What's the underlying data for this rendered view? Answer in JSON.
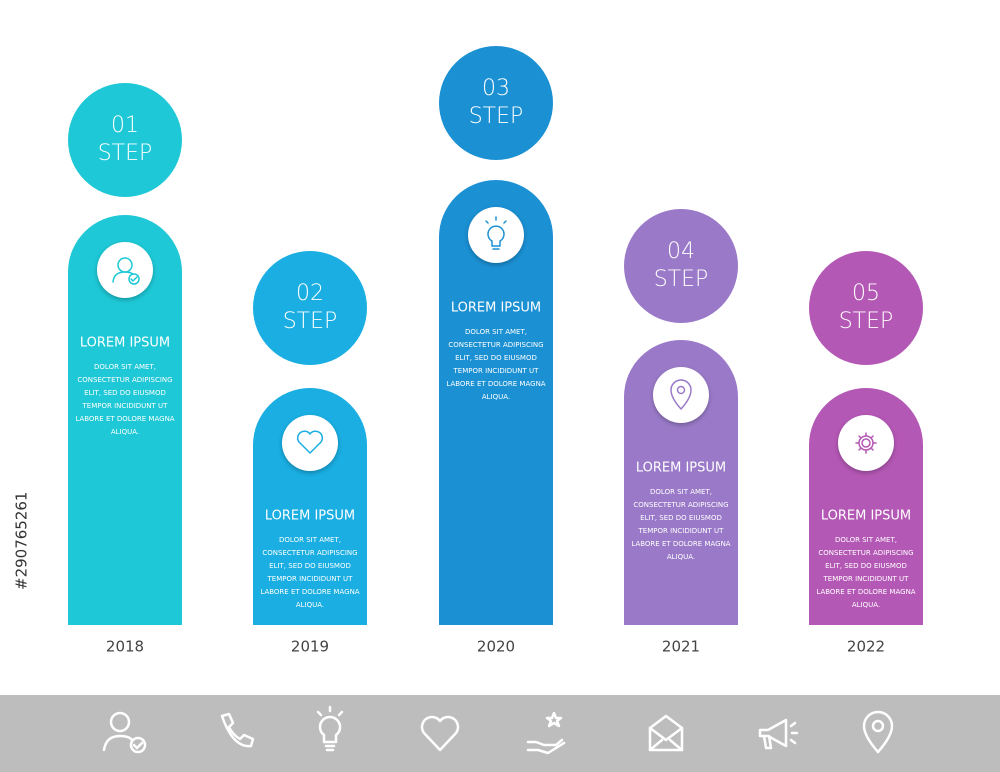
{
  "steps": [
    {
      "number": "01",
      "label": "STEP",
      "title": "LOREM IPSUM",
      "body": [
        "DOLOR SIT AMET,",
        "CONSECTETUR ADIPISCING",
        "ELIT, SED DO EIUSMOD",
        "TEMPOR INCIDIDUNT UT",
        "LABORE ET DOLORE MAGNA",
        "ALIQUA."
      ],
      "year": "2018",
      "color": "#1ec8d6"
    },
    {
      "number": "02",
      "label": "STEP",
      "title": "LOREM IPSUM",
      "body": [
        "DOLOR SIT AMET,",
        "CONSECTETUR ADIPISCING",
        "ELIT, SED DO EIUSMOD",
        "TEMPOR INCIDIDUNT UT",
        "LABORE ET DOLORE MAGNA",
        "ALIQUA."
      ],
      "year": "2019",
      "color": "#1aaee2"
    },
    {
      "number": "03",
      "label": "STEP",
      "title": "LOREM IPSUM",
      "body": [
        "DOLOR SIT AMET,",
        "CONSECTETUR ADIPISCING",
        "ELIT, SED DO EIUSMOD",
        "TEMPOR INCIDIDUNT UT",
        "LABORE ET DOLORE MAGNA",
        "ALIQUA."
      ],
      "year": "2020",
      "color": "#1b90d3"
    },
    {
      "number": "04",
      "label": "STEP",
      "title": "LOREM IPSUM",
      "body": [
        "DOLOR SIT AMET,",
        "CONSECTETUR ADIPISCING",
        "ELIT, SED DO EIUSMOD",
        "TEMPOR INCIDIDUNT UT",
        "LABORE ET DOLORE MAGNA",
        "ALIQUA."
      ],
      "year": "2021",
      "color": "#9a7ac8"
    },
    {
      "number": "05",
      "label": "STEP",
      "title": "LOREM IPSUM",
      "body": [
        "DOLOR SIT AMET,",
        "CONSECTETUR ADIPISCING",
        "ELIT, SED DO EIUSMOD",
        "TEMPOR INCIDIDUNT UT",
        "LABORE ET DOLORE MAGNA",
        "ALIQUA."
      ],
      "year": "2022",
      "color": "#b458b5"
    }
  ],
  "stock_id": "#290765261"
}
